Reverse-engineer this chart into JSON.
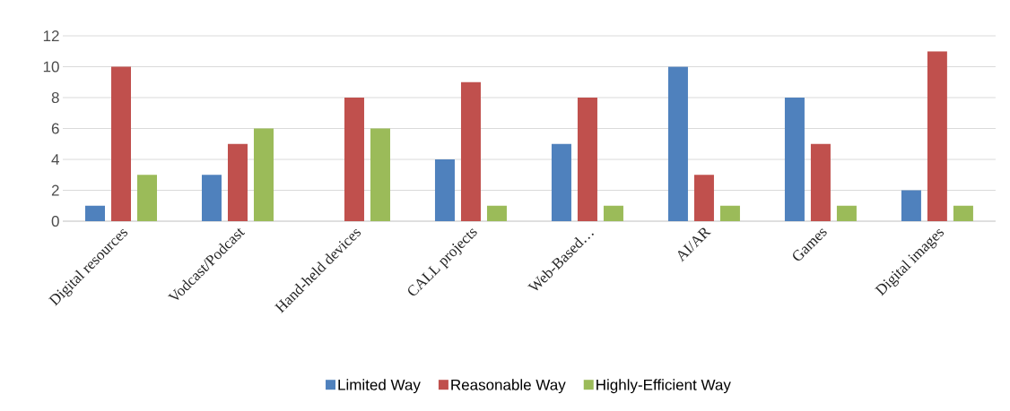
{
  "chart_data": {
    "type": "bar",
    "categories": [
      "Digital resources",
      "Vodcast/Podcast",
      "Hand-held devices",
      "CALL projects",
      "Web-Based…",
      "AI/AR",
      "Games",
      "Digital images"
    ],
    "series": [
      {
        "name": "Limited Way",
        "color": "#4f81bd",
        "values": [
          1,
          3,
          0,
          4,
          5,
          10,
          8,
          2
        ]
      },
      {
        "name": "Reasonable Way",
        "color": "#c0504d",
        "values": [
          10,
          5,
          8,
          9,
          8,
          3,
          5,
          11
        ]
      },
      {
        "name": "Highly-Efficient Way",
        "color": "#9bbb59",
        "values": [
          3,
          6,
          6,
          1,
          1,
          1,
          1,
          1
        ]
      }
    ],
    "ylim": [
      0,
      12
    ],
    "yticks": [
      0,
      2,
      4,
      6,
      8,
      10,
      12
    ],
    "grid": "y",
    "legend": "bottom"
  }
}
